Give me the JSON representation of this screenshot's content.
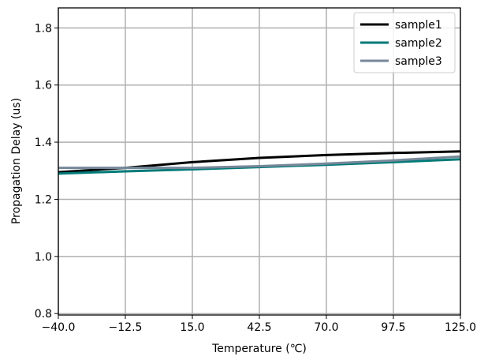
{
  "chart_data": {
    "type": "line",
    "title": "",
    "xlabel": "Temperature (℃)",
    "ylabel": "Propagation Delay (us)",
    "xlim": [
      -40,
      125
    ],
    "ylim": [
      0.795,
      1.87
    ],
    "grid": true,
    "legend_position": "top-right",
    "x_ticks": [
      -40.0,
      -12.5,
      15.0,
      42.5,
      70.0,
      97.5,
      125.0
    ],
    "x_tick_labels": [
      "−40.0",
      "−12.5",
      "15.0",
      "42.5",
      "70.0",
      "97.5",
      "125.0"
    ],
    "y_ticks": [
      0.8,
      1.0,
      1.2,
      1.4,
      1.6,
      1.8
    ],
    "y_tick_labels": [
      "0.8",
      "1.0",
      "1.2",
      "1.4",
      "1.6",
      "1.8"
    ],
    "x": [
      -40,
      -12.5,
      15,
      42.5,
      70,
      97.5,
      125
    ],
    "series": [
      {
        "name": "sample1",
        "color": "#000000",
        "values": [
          1.295,
          1.31,
          1.33,
          1.345,
          1.355,
          1.362,
          1.368
        ]
      },
      {
        "name": "sample2",
        "color": "#007a78",
        "values": [
          1.29,
          1.298,
          1.305,
          1.313,
          1.321,
          1.33,
          1.34
        ]
      },
      {
        "name": "sample3",
        "color": "#778899",
        "values": [
          1.31,
          1.31,
          1.31,
          1.316,
          1.325,
          1.336,
          1.35
        ]
      }
    ]
  }
}
